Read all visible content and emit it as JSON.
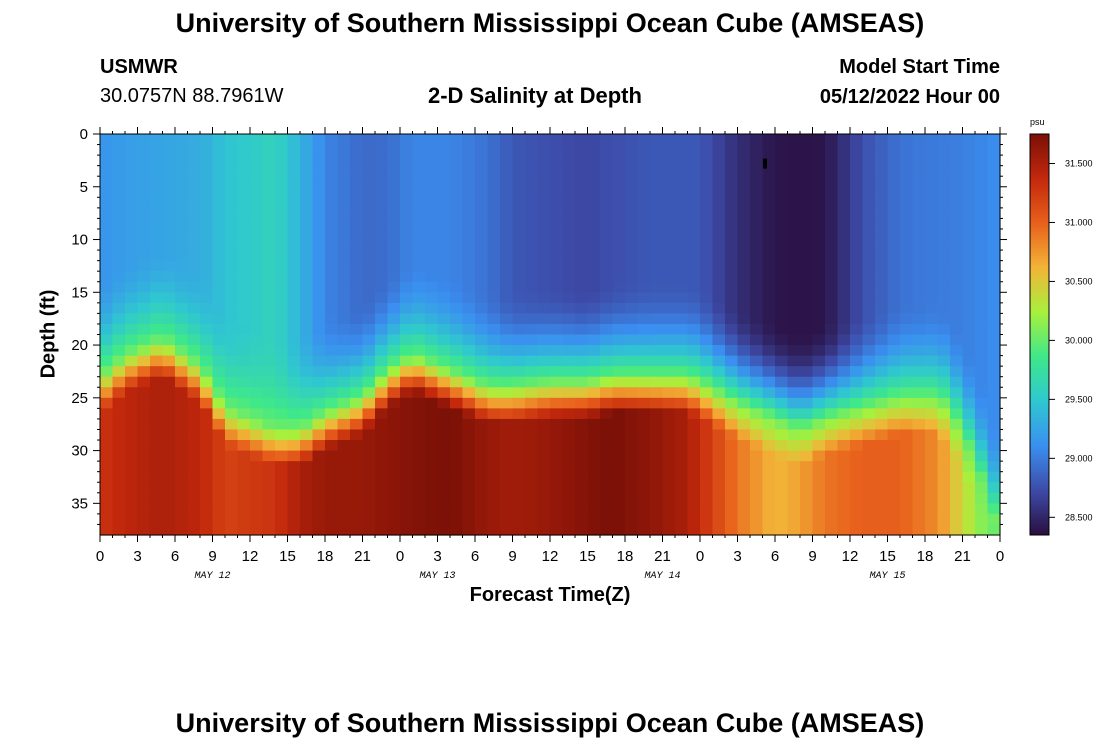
{
  "header": {
    "title": "University of Southern Mississippi Ocean Cube (AMSEAS)",
    "station_name": "USMWR",
    "station_coords": "30.0757N  88.7961W",
    "subtitle": "2-D Salinity at Depth",
    "model_start_label": "Model Start Time",
    "model_start_value": "05/12/2022 Hour 00"
  },
  "footer": {
    "title": "University of Southern Mississippi Ocean Cube (AMSEAS)"
  },
  "colors": {
    "scale": [
      "#2a0e3e",
      "#3d4ba8",
      "#3a8ff0",
      "#2fc7d0",
      "#3ee88a",
      "#a8f03c",
      "#f2b437",
      "#e8601c",
      "#c3280c",
      "#7a1007"
    ]
  },
  "chart_data": {
    "type": "heatmap",
    "title": "2-D Salinity at Depth",
    "xlabel": "Forecast Time(Z)",
    "ylabel": "Depth (ft)",
    "xlim": [
      0,
      72
    ],
    "ylim": [
      0,
      38
    ],
    "x_ticks": [
      0,
      3,
      6,
      9,
      12,
      15,
      18,
      21,
      24,
      27,
      30,
      33,
      36,
      39,
      42,
      45,
      48,
      51,
      54,
      57,
      60,
      63,
      66,
      69,
      72
    ],
    "x_tick_labels": [
      "0",
      "3",
      "6",
      "9",
      "12",
      "15",
      "18",
      "21",
      "0",
      "3",
      "6",
      "9",
      "12",
      "15",
      "18",
      "21",
      "0",
      "3",
      "6",
      "9",
      "12",
      "15",
      "18",
      "21",
      "0"
    ],
    "y_ticks": [
      0,
      5,
      10,
      15,
      20,
      25,
      30,
      35
    ],
    "y_tick_labels": [
      "0",
      "5",
      "10",
      "15",
      "20",
      "25",
      "30",
      "35"
    ],
    "day_labels": [
      {
        "x": 9,
        "label": "MAY 12"
      },
      {
        "x": 27,
        "label": "MAY 13"
      },
      {
        "x": 45,
        "label": "MAY 14"
      },
      {
        "x": 63,
        "label": "MAY 15"
      }
    ],
    "colorbar": {
      "unit": "psu",
      "range": [
        28.35,
        31.75
      ],
      "tick_values": [
        28.5,
        29.0,
        29.5,
        30.0,
        30.5,
        31.0,
        31.5
      ],
      "tick_labels": [
        "28.500",
        "29.000",
        "29.500",
        "30.000",
        "30.500",
        "31.000",
        "31.500"
      ]
    },
    "marker": {
      "hour": 53.2,
      "depth": 2.8
    },
    "surface_salinity_series": {
      "hours": [
        0,
        2,
        5,
        8,
        10,
        14,
        16,
        18,
        21,
        23,
        25,
        28,
        31,
        33,
        36,
        39,
        41,
        44,
        47,
        48,
        51,
        54,
        56,
        58,
        61,
        64,
        67,
        68,
        70,
        72
      ],
      "psu": [
        29.15,
        29.2,
        29.25,
        29.3,
        29.45,
        29.6,
        29.35,
        29.05,
        28.9,
        28.92,
        29.05,
        29.05,
        28.95,
        28.8,
        28.75,
        28.7,
        28.75,
        28.8,
        28.8,
        28.8,
        28.55,
        28.4,
        28.38,
        28.4,
        28.75,
        28.95,
        29.0,
        29.0,
        29.05,
        29.1
      ]
    },
    "halocline_depth_series": {
      "hours": [
        0,
        2,
        5,
        8,
        10,
        14,
        16,
        18,
        21,
        23,
        25,
        28,
        31,
        33,
        36,
        39,
        41,
        44,
        47,
        48,
        51,
        54,
        56,
        58,
        61,
        64,
        67,
        68,
        70,
        72
      ],
      "depth_ft": [
        23,
        21,
        19.5,
        22,
        26,
        28,
        28,
        26.5,
        25,
        22.5,
        21,
        22.5,
        24,
        24,
        23.5,
        23.5,
        23,
        23,
        23,
        23.5,
        25.5,
        27,
        28,
        27,
        26,
        25,
        25,
        26,
        31,
        38
      ]
    },
    "bottom_salinity_series": {
      "hours": [
        0,
        2,
        5,
        8,
        10,
        14,
        16,
        18,
        21,
        23,
        25,
        28,
        31,
        33,
        36,
        39,
        41,
        44,
        47,
        48,
        51,
        54,
        56,
        58,
        61,
        64,
        67,
        68,
        70,
        72
      ],
      "psu": [
        31.3,
        31.4,
        31.5,
        31.4,
        31.2,
        31.3,
        31.5,
        31.6,
        31.6,
        31.65,
        31.7,
        31.75,
        31.6,
        31.55,
        31.6,
        31.7,
        31.75,
        31.65,
        31.5,
        31.35,
        30.9,
        30.6,
        30.7,
        30.9,
        31.0,
        31.0,
        30.8,
        30.6,
        30.2,
        29.9
      ]
    }
  }
}
